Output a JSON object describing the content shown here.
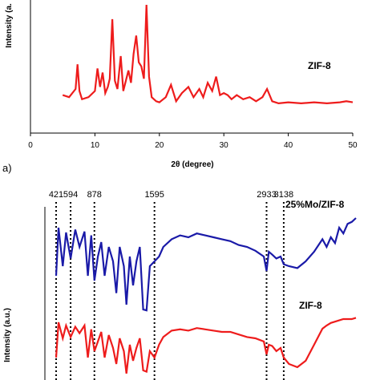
{
  "chart_data": [
    {
      "type": "line",
      "panel_label": "a)",
      "xlabel": "2θ (degree)",
      "ylabel": "Intensity (a.",
      "xlim": [
        0,
        50
      ],
      "x_ticks": [
        "0",
        "10",
        "20",
        "30",
        "40",
        "50"
      ],
      "series": [
        {
          "name": "ZIF-8",
          "color": "#ee1c1c",
          "x": [
            5,
            6,
            7,
            7.3,
            7.6,
            8,
            9,
            10,
            10.4,
            10.8,
            11.2,
            11.6,
            12,
            12.3,
            12.7,
            13.1,
            13.5,
            14,
            14.4,
            14.8,
            15.2,
            15.6,
            16.0,
            16.4,
            16.8,
            17.2,
            17.6,
            18.0,
            18.4,
            18.8,
            19.5,
            20,
            21,
            21.8,
            22.6,
            23.5,
            24.5,
            25.3,
            26.2,
            26.8,
            27.5,
            28.2,
            28.8,
            29.4,
            30.0,
            30.6,
            31.2,
            32.0,
            33.0,
            34.0,
            35.0,
            36.0,
            36.7,
            37.5,
            38.5,
            40,
            42,
            44,
            46,
            48,
            49,
            50
          ],
          "y": [
            0.12,
            0.1,
            0.18,
            0.42,
            0.16,
            0.08,
            0.1,
            0.16,
            0.38,
            0.2,
            0.34,
            0.14,
            0.2,
            0.28,
            0.86,
            0.26,
            0.18,
            0.5,
            0.16,
            0.26,
            0.36,
            0.24,
            0.52,
            0.7,
            0.44,
            0.4,
            0.28,
            1.0,
            0.3,
            0.1,
            0.06,
            0.05,
            0.1,
            0.22,
            0.06,
            0.14,
            0.2,
            0.1,
            0.18,
            0.1,
            0.24,
            0.16,
            0.3,
            0.12,
            0.14,
            0.12,
            0.08,
            0.12,
            0.08,
            0.1,
            0.06,
            0.1,
            0.18,
            0.06,
            0.04,
            0.05,
            0.04,
            0.05,
            0.04,
            0.05,
            0.06,
            0.05
          ]
        }
      ]
    },
    {
      "type": "line",
      "ylabel": "Intensity (a.u.)",
      "peak_labels": [
        "421",
        "594",
        "878",
        "1595",
        "2933",
        "3138"
      ],
      "peak_positions": [
        421,
        594,
        878,
        1595,
        2933,
        3138
      ],
      "series": [
        {
          "name": "25%Mo/ZIF-8",
          "color": "#1a1aa8",
          "x": [
            421,
            450,
            500,
            540,
            594,
            650,
            700,
            760,
            800,
            840,
            878,
            920,
            960,
            1000,
            1050,
            1100,
            1140,
            1180,
            1230,
            1260,
            1300,
            1340,
            1380,
            1420,
            1460,
            1500,
            1540,
            1595,
            1650,
            1700,
            1800,
            1900,
            2000,
            2100,
            2200,
            2300,
            2400,
            2500,
            2600,
            2700,
            2800,
            2900,
            2933,
            2960,
            3000,
            3050,
            3100,
            3138,
            3200,
            3300,
            3400,
            3500,
            3600,
            3650,
            3700,
            3750,
            3800,
            3850,
            3900,
            3950,
            4000
          ],
          "y": [
            0.4,
            0.9,
            0.5,
            0.85,
            0.58,
            0.88,
            0.7,
            0.86,
            0.4,
            0.82,
            0.35,
            0.6,
            0.75,
            0.4,
            0.7,
            0.55,
            0.22,
            0.7,
            0.5,
            0.1,
            0.6,
            0.3,
            0.55,
            0.7,
            0.05,
            0.04,
            0.5,
            0.55,
            0.6,
            0.7,
            0.78,
            0.82,
            0.8,
            0.84,
            0.82,
            0.8,
            0.78,
            0.76,
            0.72,
            0.7,
            0.66,
            0.6,
            0.45,
            0.65,
            0.62,
            0.58,
            0.6,
            0.52,
            0.5,
            0.48,
            0.55,
            0.65,
            0.78,
            0.7,
            0.8,
            0.74,
            0.9,
            0.84,
            0.94,
            0.96,
            1.0
          ]
        },
        {
          "name": "ZIF-8",
          "color": "#ee1c1c",
          "x": [
            421,
            450,
            500,
            540,
            594,
            650,
            700,
            760,
            800,
            840,
            878,
            920,
            960,
            1000,
            1050,
            1100,
            1140,
            1180,
            1230,
            1260,
            1300,
            1340,
            1380,
            1420,
            1460,
            1500,
            1540,
            1595,
            1650,
            1700,
            1800,
            1900,
            2000,
            2100,
            2200,
            2300,
            2400,
            2500,
            2600,
            2700,
            2800,
            2900,
            2933,
            2960,
            3000,
            3050,
            3100,
            3138,
            3200,
            3300,
            3400,
            3500,
            3600,
            3650,
            3700,
            3750,
            3800,
            3850,
            3900,
            3950,
            4000
          ],
          "y": [
            0.3,
            0.85,
            0.6,
            0.8,
            0.62,
            0.78,
            0.68,
            0.8,
            0.3,
            0.74,
            0.4,
            0.55,
            0.7,
            0.3,
            0.65,
            0.45,
            0.2,
            0.6,
            0.4,
            0.05,
            0.5,
            0.25,
            0.45,
            0.6,
            0.1,
            0.08,
            0.4,
            0.3,
            0.5,
            0.62,
            0.72,
            0.74,
            0.72,
            0.76,
            0.74,
            0.72,
            0.7,
            0.7,
            0.66,
            0.62,
            0.6,
            0.55,
            0.35,
            0.5,
            0.48,
            0.4,
            0.45,
            0.3,
            0.2,
            0.15,
            0.25,
            0.5,
            0.75,
            0.8,
            0.84,
            0.86,
            0.88,
            0.9,
            0.9,
            0.9,
            0.92
          ]
        }
      ]
    }
  ]
}
